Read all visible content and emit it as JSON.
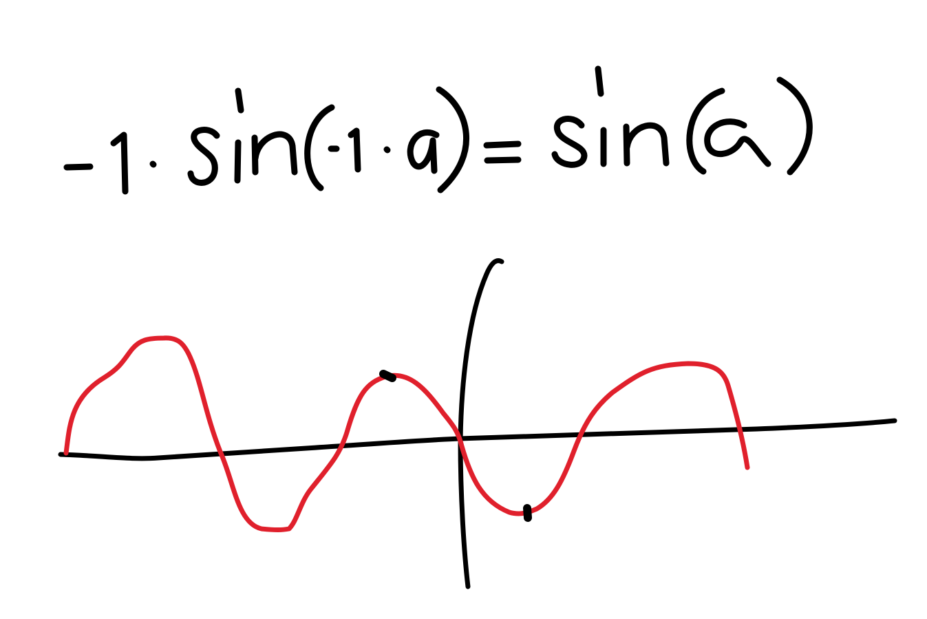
{
  "equation": {
    "text": "-1·sin(-1·α)=sin(α)"
  },
  "colors": {
    "ink": "#000000",
    "curve": "#e0202c",
    "background": "#ffffff"
  }
}
